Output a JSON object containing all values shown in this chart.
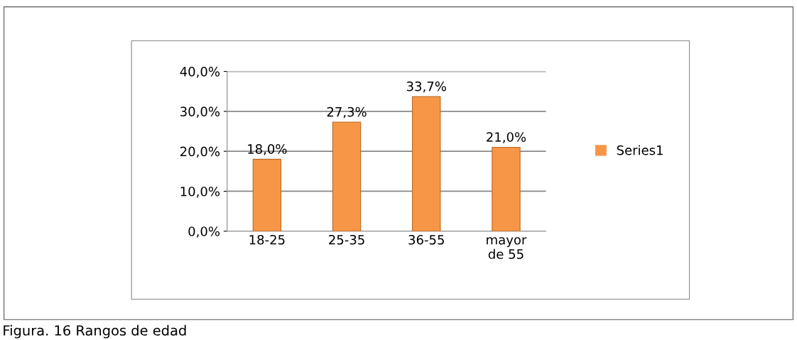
{
  "chart_data": {
    "type": "bar",
    "categories": [
      "18-25",
      "25-35",
      "36-55",
      "mayor\nde 55"
    ],
    "series": [
      {
        "name": "Series1",
        "color": "#f79646",
        "values": [
          18.0,
          27.3,
          33.7,
          21.0
        ],
        "value_labels": [
          "18,0%",
          "27,3%",
          "33,7%",
          "21,0%"
        ]
      }
    ],
    "ylim": [
      0,
      40
    ],
    "yticks": [
      {
        "value": 0,
        "label": "0,0%"
      },
      {
        "value": 10,
        "label": "10,0%"
      },
      {
        "value": 20,
        "label": "20,0%"
      },
      {
        "value": 30,
        "label": "30,0%"
      },
      {
        "value": 40,
        "label": "40,0%"
      }
    ],
    "grid": "y",
    "legend": "right",
    "annotations": [
      "Figura. 16 Rangos de edad"
    ]
  }
}
